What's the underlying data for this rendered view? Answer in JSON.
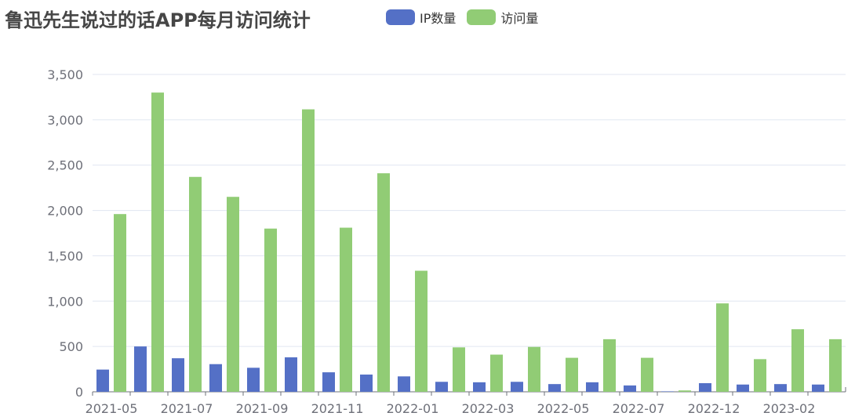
{
  "colors": {
    "ip": "#5470c6",
    "visits": "#91cc75",
    "grid": "#e0e6f1",
    "axis": "#6e7079"
  },
  "chart_data": {
    "type": "bar",
    "title": "鲁迅先生说过的话APP每月访问统计",
    "legend_position": "top",
    "grid": true,
    "ylim": [
      0,
      3500
    ],
    "y_ticks": [
      "0",
      "500",
      "1,000",
      "1,500",
      "2,000",
      "2,500",
      "3,000",
      "3,500"
    ],
    "x_tick_labels": [
      "2021-05",
      "2021-07",
      "2021-09",
      "2021-11",
      "2022-01",
      "2022-03",
      "2022-05",
      "2022-07",
      "2022-12",
      "2023-02"
    ],
    "categories": [
      "2021-05",
      "2021-06",
      "2021-07",
      "2021-08",
      "2021-09",
      "2021-10",
      "2021-11",
      "2021-12",
      "2022-01",
      "2022-02",
      "2022-03",
      "2022-04",
      "2022-05",
      "2022-06",
      "2022-07",
      "2022-11",
      "2022-12",
      "2023-01",
      "2023-02",
      "2023-03"
    ],
    "series": [
      {
        "name": "IP数量",
        "color": "#5470c6",
        "values": [
          245,
          500,
          370,
          305,
          265,
          380,
          215,
          190,
          170,
          110,
          105,
          110,
          85,
          105,
          70,
          5,
          95,
          80,
          85,
          80
        ]
      },
      {
        "name": "访问量",
        "color": "#91cc75",
        "values": [
          1960,
          3300,
          2370,
          2150,
          1800,
          3115,
          1810,
          2410,
          1335,
          490,
          410,
          495,
          375,
          580,
          375,
          15,
          975,
          360,
          690,
          580
        ]
      }
    ]
  }
}
